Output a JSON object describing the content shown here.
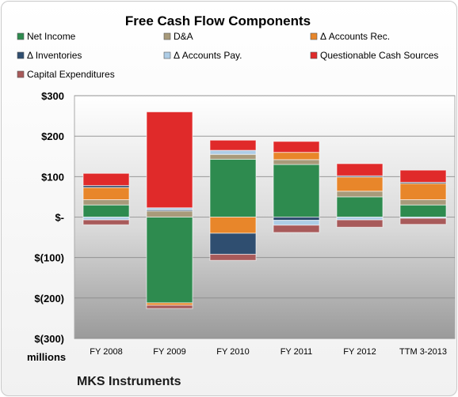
{
  "chart_data": {
    "type": "bar",
    "stacked": true,
    "title": "Free Cash Flow Components",
    "company": "MKS Instruments",
    "units_label": "millions",
    "categories": [
      "FY 2008",
      "FY 2009",
      "FY 2010",
      "FY 2011",
      "FY 2012",
      "TTM 3-2013"
    ],
    "y_ticks": [
      "$300",
      "$200",
      "$100",
      "$-",
      "$(100)",
      "$(200)",
      "$(300)"
    ],
    "ylim": [
      -300,
      300
    ],
    "grid": true,
    "legend_position": "top",
    "series": [
      {
        "name": "Net Income",
        "color": "#2e8b4f",
        "values": [
          30,
          -212,
          143,
          130,
          50,
          30
        ]
      },
      {
        "name": "D&A",
        "color": "#a89a7a",
        "values": [
          13,
          15,
          12,
          12,
          14,
          13
        ]
      },
      {
        "name": "Δ Accounts Rec.",
        "color": "#e8862a",
        "values": [
          30,
          -6,
          -40,
          18,
          35,
          40
        ]
      },
      {
        "name": "Δ Inventories",
        "color": "#2f4e70",
        "values": [
          5,
          3,
          -52,
          -8,
          3,
          3
        ]
      },
      {
        "name": "Δ Accounts Pay.",
        "color": "#aecde6",
        "values": [
          -7,
          5,
          10,
          -12,
          -7,
          -3
        ]
      },
      {
        "name": "Questionable Cash Sources",
        "color": "#e02a2a",
        "values": [
          30,
          237,
          25,
          27,
          30,
          30
        ]
      },
      {
        "name": "Capital Expenditures",
        "color": "#a85a5a",
        "values": [
          -12,
          -8,
          -15,
          -18,
          -18,
          -15
        ]
      }
    ]
  }
}
